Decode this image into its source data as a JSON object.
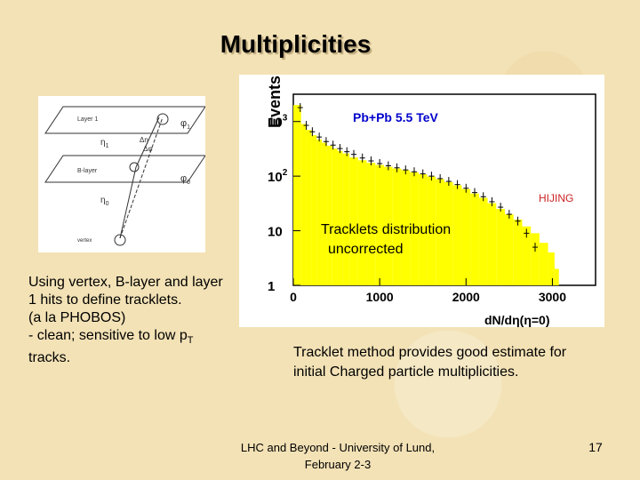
{
  "slide": {
    "title": "Multiplicities",
    "left_text": [
      "Using vertex, B-layer and layer",
      "1 hits to define tracklets.",
      "(a la PHOBOS)",
      "- clean; sensitive to low p",
      "tracks."
    ],
    "pt_subscript": "T",
    "right_text": [
      "Tracklet method provides good estimate for",
      "initial Charged particle multiplicities."
    ],
    "footer": [
      "LHC and Beyond - University of Lund,",
      "February 2-3"
    ],
    "page_number": "17"
  },
  "diagram": {
    "layer1_label": "Layer 1",
    "blayer_label": "B-layer",
    "vertex_label": "vertex",
    "eta1_label": "η",
    "eta1_sub": "1",
    "eta0_label": "η",
    "eta0_sub": "0",
    "phi1_label": "φ",
    "phi1_sub": "1",
    "phi0_label": "φ",
    "phi0_sub": "0",
    "deta_label": "Δη",
    "dphi_label": "Δφ"
  },
  "chart_data": {
    "type": "bar",
    "title": "Pb+Pb 5.5 TeV",
    "ylabel": "Events",
    "xlabel": "dN/dη(η=0)",
    "legend_hijing": "HIJING",
    "annotation": [
      "Tracklets distribution",
      "uncorrected"
    ],
    "x_ticks": [
      "0",
      "1000",
      "2000",
      "3000"
    ],
    "y_ticks": [
      {
        "base": "10",
        "exp": "3",
        "value": 1000
      },
      {
        "base": "10",
        "exp": "2",
        "value": 100
      },
      {
        "base": "10",
        "exp": "",
        "value": 10
      },
      {
        "base": "1",
        "exp": "",
        "value": 1
      }
    ],
    "xlim": [
      0,
      3500
    ],
    "ylim_log10": [
      0,
      3.5
    ],
    "y_scale": "log",
    "hijing_series": {
      "x": [
        60,
        120,
        180,
        240,
        300,
        360,
        420,
        480,
        540,
        600,
        700,
        800,
        900,
        1000,
        1100,
        1200,
        1300,
        1400,
        1500,
        1600,
        1700,
        1800,
        1900,
        2000,
        2100,
        2200,
        2300,
        2400,
        2500,
        2600,
        2700,
        2800,
        2900,
        3000,
        3050,
        3100
      ],
      "values": [
        2000,
        900,
        700,
        560,
        470,
        410,
        360,
        320,
        290,
        260,
        220,
        195,
        175,
        160,
        148,
        138,
        128,
        118,
        108,
        98,
        88,
        78,
        68,
        58,
        48,
        40,
        32,
        25,
        20,
        16,
        12,
        9,
        6,
        4,
        2,
        1
      ]
    },
    "data_series": {
      "x": [
        80,
        150,
        220,
        300,
        380,
        460,
        540,
        620,
        700,
        800,
        900,
        1000,
        1100,
        1200,
        1300,
        1400,
        1500,
        1600,
        1700,
        1800,
        1900,
        2000,
        2100,
        2200,
        2300,
        2400,
        2500,
        2600,
        2700,
        2800
      ],
      "values": [
        1800,
        850,
        650,
        520,
        430,
        370,
        320,
        280,
        250,
        215,
        190,
        170,
        155,
        142,
        130,
        120,
        110,
        100,
        90,
        80,
        70,
        60,
        50,
        42,
        34,
        27,
        20,
        15,
        9,
        5
      ]
    }
  }
}
